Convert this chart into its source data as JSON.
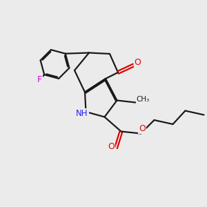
{
  "bg_color": "#ebebeb",
  "bond_color": "#1a1a1a",
  "nitrogen_color": "#2020ff",
  "oxygen_color": "#e00000",
  "fluorine_color": "#e000e0",
  "line_width": 1.6,
  "dbo": 0.055,
  "figsize": [
    3.0,
    3.0
  ],
  "dpi": 100,
  "xlim": [
    0,
    10
  ],
  "ylim": [
    0,
    10
  ]
}
